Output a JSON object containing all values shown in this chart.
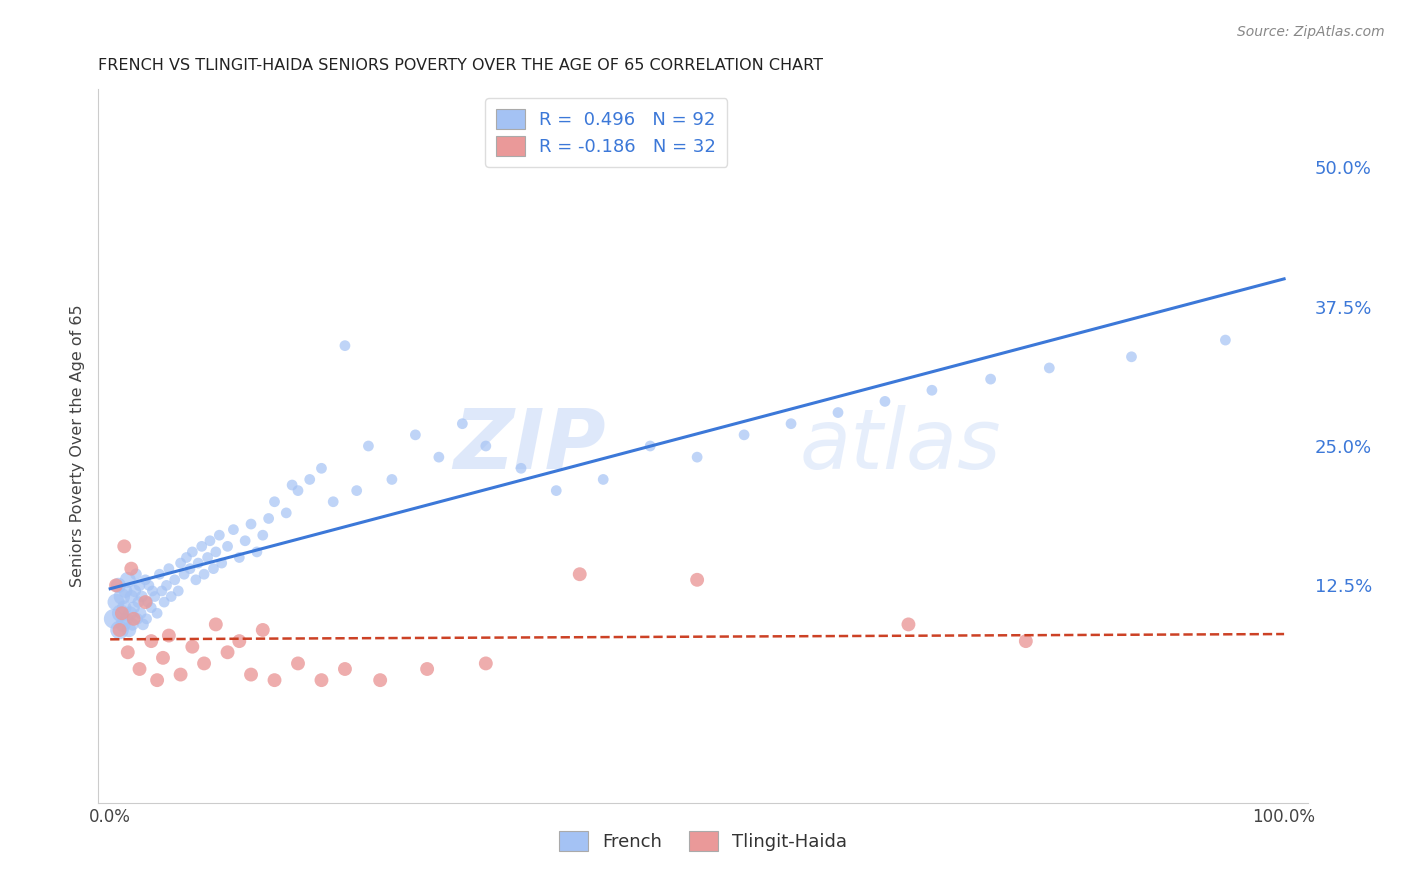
{
  "title": "FRENCH VS TLINGIT-HAIDA SENIORS POVERTY OVER THE AGE OF 65 CORRELATION CHART",
  "source": "Source: ZipAtlas.com",
  "ylabel": "Seniors Poverty Over the Age of 65",
  "xlim": [
    0.0,
    1.0
  ],
  "ylim": [
    -0.07,
    0.57
  ],
  "yticks": [
    0.0,
    0.125,
    0.25,
    0.375,
    0.5
  ],
  "ytick_labels": [
    "",
    "12.5%",
    "25.0%",
    "37.5%",
    "50.0%"
  ],
  "xtick_labels": [
    "0.0%",
    "100.0%"
  ],
  "french_R": 0.496,
  "french_N": 92,
  "tlingit_R": -0.186,
  "tlingit_N": 32,
  "blue_color": "#a4c2f4",
  "pink_color": "#ea9999",
  "line_blue": "#3c78d8",
  "line_pink": "#cc4125",
  "watermark_zip": "ZIP",
  "watermark_atlas": "atlas",
  "legend_label1": "French",
  "legend_label2": "Tlingit-Haida",
  "french_x": [
    0.003,
    0.005,
    0.007,
    0.008,
    0.009,
    0.01,
    0.011,
    0.012,
    0.013,
    0.014,
    0.015,
    0.016,
    0.017,
    0.018,
    0.019,
    0.02,
    0.021,
    0.022,
    0.023,
    0.024,
    0.025,
    0.026,
    0.027,
    0.028,
    0.03,
    0.031,
    0.032,
    0.033,
    0.035,
    0.036,
    0.038,
    0.04,
    0.042,
    0.044,
    0.046,
    0.048,
    0.05,
    0.052,
    0.055,
    0.058,
    0.06,
    0.063,
    0.065,
    0.068,
    0.07,
    0.073,
    0.075,
    0.078,
    0.08,
    0.083,
    0.085,
    0.088,
    0.09,
    0.093,
    0.095,
    0.1,
    0.105,
    0.11,
    0.115,
    0.12,
    0.125,
    0.13,
    0.135,
    0.14,
    0.15,
    0.155,
    0.16,
    0.17,
    0.18,
    0.19,
    0.2,
    0.21,
    0.22,
    0.24,
    0.26,
    0.28,
    0.3,
    0.32,
    0.35,
    0.38,
    0.42,
    0.46,
    0.5,
    0.54,
    0.58,
    0.62,
    0.66,
    0.7,
    0.75,
    0.8,
    0.87,
    0.95
  ],
  "french_y": [
    0.095,
    0.11,
    0.125,
    0.085,
    0.1,
    0.115,
    0.09,
    0.105,
    0.12,
    0.095,
    0.13,
    0.085,
    0.1,
    0.115,
    0.09,
    0.105,
    0.12,
    0.135,
    0.095,
    0.11,
    0.125,
    0.1,
    0.115,
    0.09,
    0.13,
    0.095,
    0.11,
    0.125,
    0.105,
    0.12,
    0.115,
    0.1,
    0.135,
    0.12,
    0.11,
    0.125,
    0.14,
    0.115,
    0.13,
    0.12,
    0.145,
    0.135,
    0.15,
    0.14,
    0.155,
    0.13,
    0.145,
    0.16,
    0.135,
    0.15,
    0.165,
    0.14,
    0.155,
    0.17,
    0.145,
    0.16,
    0.175,
    0.15,
    0.165,
    0.18,
    0.155,
    0.17,
    0.185,
    0.2,
    0.19,
    0.215,
    0.21,
    0.22,
    0.23,
    0.2,
    0.34,
    0.21,
    0.25,
    0.22,
    0.26,
    0.24,
    0.27,
    0.25,
    0.23,
    0.21,
    0.22,
    0.25,
    0.24,
    0.26,
    0.27,
    0.28,
    0.29,
    0.3,
    0.31,
    0.32,
    0.33,
    0.345
  ],
  "french_sizes": [
    200,
    150,
    120,
    180,
    160,
    140,
    120,
    110,
    100,
    90,
    130,
    110,
    100,
    90,
    80,
    80,
    80,
    70,
    70,
    70,
    70,
    70,
    70,
    70,
    60,
    60,
    60,
    60,
    60,
    60,
    60,
    60,
    60,
    60,
    60,
    60,
    60,
    60,
    60,
    60,
    60,
    60,
    60,
    60,
    60,
    60,
    60,
    60,
    60,
    60,
    60,
    60,
    60,
    60,
    60,
    60,
    60,
    60,
    60,
    60,
    60,
    60,
    60,
    60,
    60,
    60,
    60,
    60,
    60,
    60,
    60,
    60,
    60,
    60,
    60,
    60,
    60,
    60,
    60,
    60,
    60,
    60,
    60,
    60,
    60,
    60,
    60,
    60,
    60,
    60,
    60,
    60
  ],
  "tlingit_x": [
    0.005,
    0.008,
    0.01,
    0.012,
    0.015,
    0.018,
    0.02,
    0.025,
    0.03,
    0.035,
    0.04,
    0.045,
    0.05,
    0.06,
    0.07,
    0.08,
    0.09,
    0.1,
    0.11,
    0.12,
    0.13,
    0.14,
    0.16,
    0.18,
    0.2,
    0.23,
    0.27,
    0.32,
    0.4,
    0.5,
    0.68,
    0.78
  ],
  "tlingit_y": [
    0.125,
    0.085,
    0.1,
    0.16,
    0.065,
    0.14,
    0.095,
    0.05,
    0.11,
    0.075,
    0.04,
    0.06,
    0.08,
    0.045,
    0.07,
    0.055,
    0.09,
    0.065,
    0.075,
    0.045,
    0.085,
    0.04,
    0.055,
    0.04,
    0.05,
    0.04,
    0.05,
    0.055,
    0.135,
    0.13,
    0.09,
    0.075
  ],
  "tlingit_sizes": [
    100,
    100,
    100,
    100,
    100,
    100,
    100,
    100,
    100,
    100,
    100,
    100,
    100,
    100,
    100,
    100,
    100,
    100,
    100,
    100,
    100,
    100,
    100,
    100,
    100,
    100,
    100,
    100,
    100,
    100,
    100,
    100
  ]
}
